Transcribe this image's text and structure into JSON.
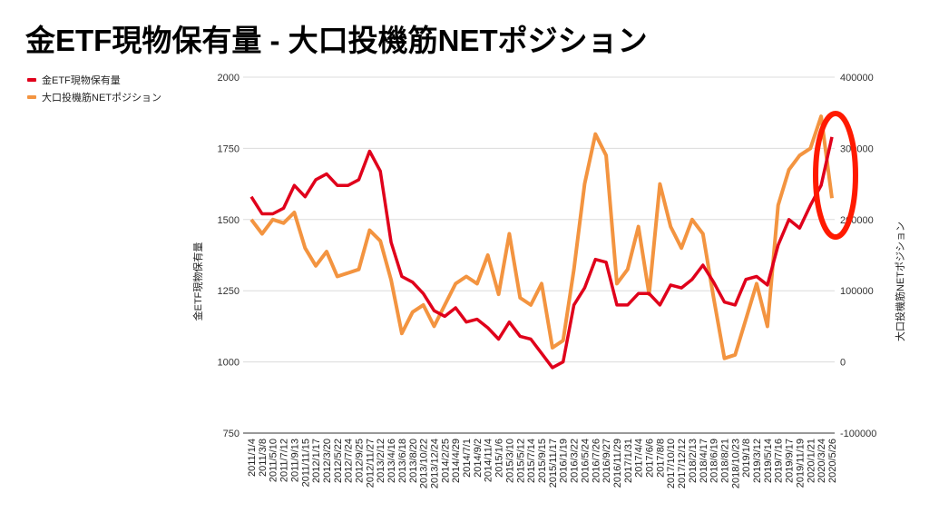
{
  "chart_data": {
    "type": "line",
    "title": "金ETF現物保有量 - 大口投機筋NETポジション",
    "xlabel": "",
    "ylabel_left": "金ETF現物保有量",
    "ylabel_right": "大口投機筋NETポジション",
    "ylim_left": [
      750,
      2000
    ],
    "ylim_right": [
      -100000,
      400000
    ],
    "yticks_left": [
      "750",
      "1000",
      "1250",
      "1500",
      "1750",
      "2000"
    ],
    "yticks_right": [
      "-100000",
      "0",
      "100000",
      "200000",
      "300000",
      "400000"
    ],
    "grid": true,
    "legend_position": "top-left",
    "x": [
      "2011/1/4",
      "2011/3/8",
      "2011/5/10",
      "2011/7/12",
      "2011/9/13",
      "2011/11/15",
      "2012/1/17",
      "2012/3/20",
      "2012/5/22",
      "2012/7/24",
      "2012/9/25",
      "2012/11/27",
      "2013/2/12",
      "2013/4/16",
      "2013/6/18",
      "2013/8/20",
      "2013/10/22",
      "2013/12/24",
      "2014/2/25",
      "2014/4/29",
      "2014/7/1",
      "2014/9/2",
      "2014/11/4",
      "2015/1/6",
      "2015/3/10",
      "2015/5/12",
      "2015/7/14",
      "2015/9/15",
      "2015/11/17",
      "2016/1/19",
      "2016/3/22",
      "2016/5/24",
      "2016/7/26",
      "2016/9/27",
      "2016/11/29",
      "2017/1/31",
      "2017/4/4",
      "2017/6/6",
      "2017/8/8",
      "2017/10/10",
      "2017/12/12",
      "2018/2/13",
      "2018/4/17",
      "2018/6/19",
      "2018/8/21",
      "2018/10/23",
      "2019/1/8",
      "2019/3/12",
      "2019/5/14",
      "2019/7/16",
      "2019/9/17",
      "2019/11/19",
      "2020/1/21",
      "2020/3/24",
      "2020/5/26"
    ],
    "series": [
      {
        "name": "金ETF現物保有量",
        "axis": "left",
        "color": "#e0001b",
        "values": [
          1580,
          1520,
          1520,
          1540,
          1620,
          1580,
          1640,
          1660,
          1620,
          1620,
          1640,
          1740,
          1670,
          1420,
          1300,
          1280,
          1240,
          1180,
          1160,
          1190,
          1140,
          1150,
          1120,
          1080,
          1140,
          1090,
          1080,
          1030,
          980,
          1000,
          1200,
          1260,
          1360,
          1350,
          1200,
          1200,
          1240,
          1240,
          1200,
          1270,
          1260,
          1290,
          1340,
          1280,
          1210,
          1200,
          1290,
          1300,
          1270,
          1410,
          1500,
          1470,
          1550,
          1620,
          1790
        ]
      },
      {
        "name": "大口投機筋NETポジション",
        "axis": "right",
        "color": "#f39440",
        "values": [
          200000,
          180000,
          200000,
          195000,
          210000,
          160000,
          135000,
          155000,
          120000,
          125000,
          130000,
          185000,
          170000,
          115000,
          40000,
          70000,
          80000,
          50000,
          80000,
          110000,
          120000,
          110000,
          150000,
          95000,
          180000,
          90000,
          80000,
          110000,
          20000,
          30000,
          130000,
          250000,
          320000,
          290000,
          110000,
          130000,
          190000,
          95000,
          250000,
          190000,
          160000,
          200000,
          180000,
          90000,
          5000,
          10000,
          60000,
          110000,
          50000,
          220000,
          270000,
          290000,
          300000,
          345000,
          230000
        ]
      }
    ],
    "annotation": {
      "shape": "ellipse",
      "color": "#ff1a00",
      "target": "2020/3/24 - 2020/5/26"
    }
  }
}
